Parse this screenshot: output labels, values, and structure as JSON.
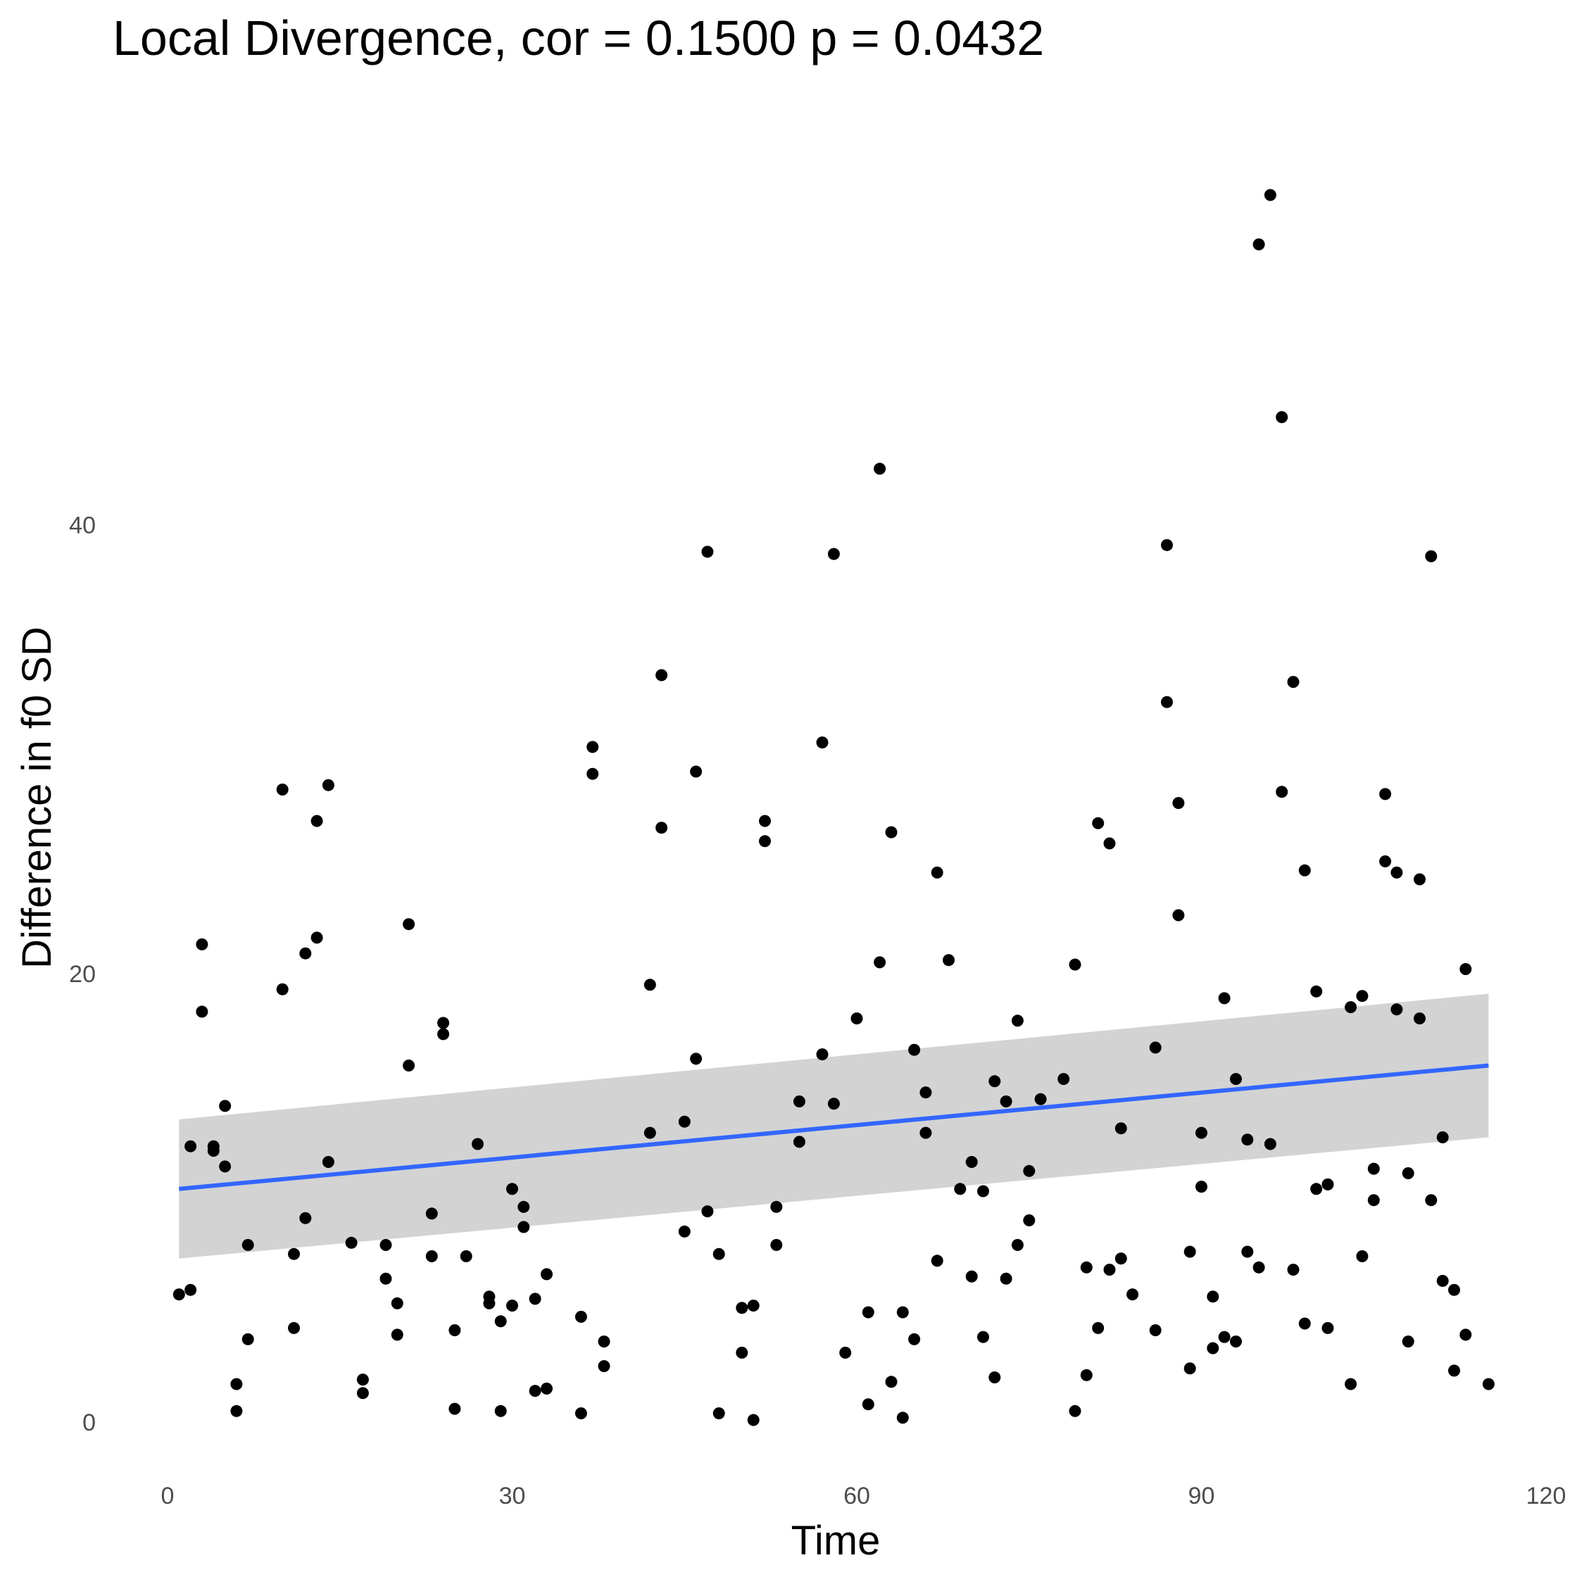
{
  "chart_data": {
    "type": "scatter",
    "title": "Local Divergence, cor = 0.1500 p = 0.0432",
    "xlabel": "Time",
    "ylabel": "Difference in f0 SD",
    "xlim": [
      0,
      120
    ],
    "ylim": [
      -1.5,
      59
    ],
    "x_ticks": [
      "0",
      "30",
      "60",
      "90",
      "120"
    ],
    "y_ticks": [
      "0",
      "20",
      "40"
    ],
    "grid": false,
    "legend": "none",
    "point_color": "#000000",
    "trend": {
      "method": "linear fit with confidence band",
      "color": "#3366FF",
      "band_color": "#d3d3d3",
      "x": [
        1,
        115
      ],
      "y": [
        10.4,
        15.9
      ],
      "ci_lower": [
        7.3,
        12.7
      ],
      "ci_upper": [
        13.5,
        19.1
      ]
    },
    "points": [
      [
        1,
        5.7
      ],
      [
        2,
        12.3
      ],
      [
        2,
        5.9
      ],
      [
        3,
        21.3
      ],
      [
        3,
        18.3
      ],
      [
        4,
        12.3
      ],
      [
        4,
        12.1
      ],
      [
        5,
        14.1
      ],
      [
        5,
        11.4
      ],
      [
        6,
        1.7
      ],
      [
        6,
        0.5
      ],
      [
        7,
        7.9
      ],
      [
        7,
        3.7
      ],
      [
        10,
        28.2
      ],
      [
        10,
        19.3
      ],
      [
        11,
        7.5
      ],
      [
        11,
        4.2
      ],
      [
        12,
        20.9
      ],
      [
        12,
        9.1
      ],
      [
        13,
        26.8
      ],
      [
        13,
        21.6
      ],
      [
        14,
        28.4
      ],
      [
        14,
        11.6
      ],
      [
        16,
        8.0
      ],
      [
        17,
        1.9
      ],
      [
        17,
        1.3
      ],
      [
        19,
        7.9
      ],
      [
        19,
        6.4
      ],
      [
        20,
        5.3
      ],
      [
        20,
        3.9
      ],
      [
        21,
        22.2
      ],
      [
        21,
        15.9
      ],
      [
        23,
        9.3
      ],
      [
        23,
        7.4
      ],
      [
        24,
        17.8
      ],
      [
        24,
        17.3
      ],
      [
        25,
        4.1
      ],
      [
        25,
        0.6
      ],
      [
        26,
        7.4
      ],
      [
        27,
        12.4
      ],
      [
        28,
        5.6
      ],
      [
        28,
        5.3
      ],
      [
        29,
        4.5
      ],
      [
        29,
        0.5
      ],
      [
        30,
        10.4
      ],
      [
        30,
        5.2
      ],
      [
        31,
        9.6
      ],
      [
        31,
        8.7
      ],
      [
        32,
        5.5
      ],
      [
        32,
        1.4
      ],
      [
        33,
        6.6
      ],
      [
        33,
        1.5
      ],
      [
        36,
        4.7
      ],
      [
        36,
        0.4
      ],
      [
        37,
        30.1
      ],
      [
        37,
        28.9
      ],
      [
        38,
        3.6
      ],
      [
        38,
        2.5
      ],
      [
        42,
        19.5
      ],
      [
        42,
        12.9
      ],
      [
        43,
        33.3
      ],
      [
        43,
        26.5
      ],
      [
        45,
        13.4
      ],
      [
        45,
        8.5
      ],
      [
        46,
        29.0
      ],
      [
        46,
        16.2
      ],
      [
        47,
        38.8
      ],
      [
        47,
        9.4
      ],
      [
        48,
        7.5
      ],
      [
        48,
        0.4
      ],
      [
        50,
        5.1
      ],
      [
        50,
        3.1
      ],
      [
        51,
        5.2
      ],
      [
        51,
        0.1
      ],
      [
        52,
        26.8
      ],
      [
        52,
        25.9
      ],
      [
        53,
        9.6
      ],
      [
        53,
        7.9
      ],
      [
        55,
        14.3
      ],
      [
        55,
        12.5
      ],
      [
        57,
        30.3
      ],
      [
        57,
        16.4
      ],
      [
        58,
        38.7
      ],
      [
        58,
        14.2
      ],
      [
        59,
        3.1
      ],
      [
        60,
        18.0
      ],
      [
        61,
        4.9
      ],
      [
        61,
        0.8
      ],
      [
        62,
        42.5
      ],
      [
        62,
        20.5
      ],
      [
        63,
        26.3
      ],
      [
        63,
        1.8
      ],
      [
        64,
        4.9
      ],
      [
        64,
        0.2
      ],
      [
        65,
        16.6
      ],
      [
        65,
        3.7
      ],
      [
        66,
        14.7
      ],
      [
        66,
        12.9
      ],
      [
        67,
        24.5
      ],
      [
        67,
        7.2
      ],
      [
        68,
        20.6
      ],
      [
        69,
        10.4
      ],
      [
        70,
        11.6
      ],
      [
        70,
        6.5
      ],
      [
        71,
        10.3
      ],
      [
        71,
        3.8
      ],
      [
        72,
        15.2
      ],
      [
        72,
        2.0
      ],
      [
        73,
        14.3
      ],
      [
        73,
        6.4
      ],
      [
        74,
        17.9
      ],
      [
        74,
        7.9
      ],
      [
        75,
        11.2
      ],
      [
        75,
        9.0
      ],
      [
        76,
        14.4
      ],
      [
        78,
        15.3
      ],
      [
        79,
        20.4
      ],
      [
        79,
        0.5
      ],
      [
        80,
        6.9
      ],
      [
        80,
        2.1
      ],
      [
        81,
        26.7
      ],
      [
        81,
        4.2
      ],
      [
        82,
        25.8
      ],
      [
        82,
        6.8
      ],
      [
        83,
        13.1
      ],
      [
        83,
        7.3
      ],
      [
        84,
        5.7
      ],
      [
        86,
        16.7
      ],
      [
        86,
        4.1
      ],
      [
        87,
        39.1
      ],
      [
        87,
        32.1
      ],
      [
        88,
        27.6
      ],
      [
        88,
        22.6
      ],
      [
        89,
        7.6
      ],
      [
        89,
        2.4
      ],
      [
        90,
        12.9
      ],
      [
        90,
        10.5
      ],
      [
        91,
        5.6
      ],
      [
        91,
        3.3
      ],
      [
        92,
        18.9
      ],
      [
        92,
        3.8
      ],
      [
        93,
        15.3
      ],
      [
        93,
        3.6
      ],
      [
        94,
        12.6
      ],
      [
        94,
        7.6
      ],
      [
        95,
        52.5
      ],
      [
        95,
        6.9
      ],
      [
        96,
        54.7
      ],
      [
        96,
        12.4
      ],
      [
        97,
        44.8
      ],
      [
        97,
        28.1
      ],
      [
        98,
        33.0
      ],
      [
        98,
        6.8
      ],
      [
        99,
        24.6
      ],
      [
        99,
        4.4
      ],
      [
        100,
        19.2
      ],
      [
        100,
        10.4
      ],
      [
        101,
        10.6
      ],
      [
        101,
        4.2
      ],
      [
        103,
        18.5
      ],
      [
        103,
        1.7
      ],
      [
        104,
        19.0
      ],
      [
        104,
        7.4
      ],
      [
        105,
        11.3
      ],
      [
        105,
        9.9
      ],
      [
        106,
        28.0
      ],
      [
        106,
        25.0
      ],
      [
        107,
        24.5
      ],
      [
        107,
        18.4
      ],
      [
        108,
        11.1
      ],
      [
        108,
        3.6
      ],
      [
        109,
        24.2
      ],
      [
        109,
        18.0
      ],
      [
        110,
        38.6
      ],
      [
        110,
        9.9
      ],
      [
        111,
        12.7
      ],
      [
        111,
        6.3
      ],
      [
        112,
        5.9
      ],
      [
        112,
        2.3
      ],
      [
        113,
        20.2
      ],
      [
        113,
        3.9
      ],
      [
        115,
        1.7
      ]
    ]
  }
}
